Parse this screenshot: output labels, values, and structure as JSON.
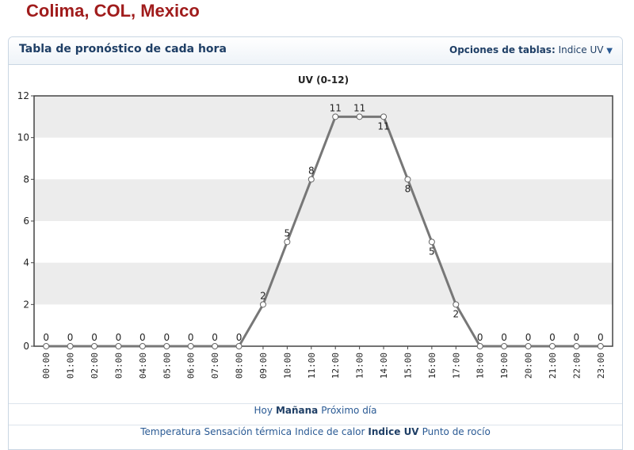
{
  "location": "Colima, COL, Mexico",
  "panel": {
    "title": "Tabla de pronóstico de cada hora",
    "options_label": "Opciones de tablas:",
    "options_value": "Indice UV"
  },
  "day_nav": [
    {
      "label": "Hoy",
      "active": false
    },
    {
      "label": "Mañana",
      "active": true
    },
    {
      "label": "Próximo día",
      "active": false
    }
  ],
  "variable_nav": [
    {
      "label": "Temperatura",
      "active": false
    },
    {
      "label": "Sensación térmica",
      "active": false
    },
    {
      "label": "Indice de calor",
      "active": false
    },
    {
      "label": "Indice UV",
      "active": true
    },
    {
      "label": "Punto de rocío",
      "active": false
    }
  ],
  "chart_data": {
    "type": "line",
    "title": "UV (0-12)",
    "xlabel": "",
    "ylabel": "",
    "ylim": [
      0,
      12
    ],
    "yticks": [
      0,
      2,
      4,
      6,
      8,
      10,
      12
    ],
    "grid": "alternating horizontal bands",
    "categories": [
      "00:00",
      "01:00",
      "02:00",
      "03:00",
      "04:00",
      "05:00",
      "06:00",
      "07:00",
      "08:00",
      "09:00",
      "10:00",
      "11:00",
      "12:00",
      "13:00",
      "14:00",
      "15:00",
      "16:00",
      "17:00",
      "18:00",
      "19:00",
      "20:00",
      "21:00",
      "22:00",
      "23:00"
    ],
    "series": [
      {
        "values": [
          0,
          0,
          0,
          0,
          0,
          0,
          0,
          0,
          0,
          2,
          5,
          8,
          11,
          11,
          11,
          8,
          5,
          2,
          0,
          0,
          0,
          0,
          0,
          0
        ]
      }
    ],
    "colors": {
      "line": "#777777",
      "band": "#ececec",
      "frame": "#444444"
    }
  }
}
